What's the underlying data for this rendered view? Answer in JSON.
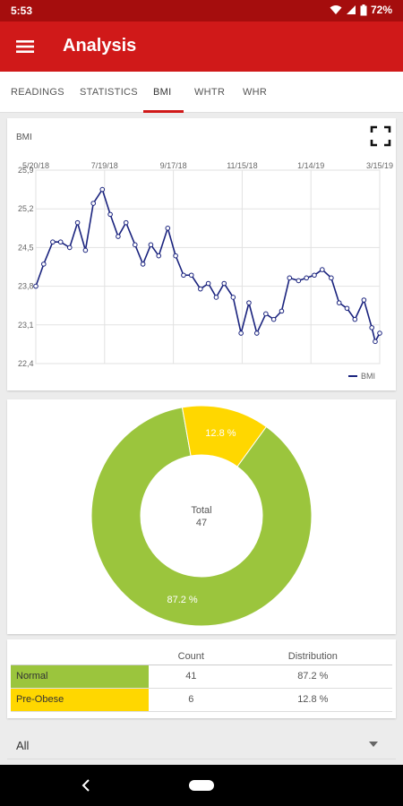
{
  "status_bar": {
    "time": "5:53",
    "battery": "72%"
  },
  "app_bar": {
    "title": "Analysis"
  },
  "tabs": [
    {
      "label": "READINGS",
      "active": false
    },
    {
      "label": "STATISTICS",
      "active": false
    },
    {
      "label": "BMI",
      "active": true
    },
    {
      "label": "WHTR",
      "active": false
    },
    {
      "label": "WHR",
      "active": false
    }
  ],
  "colors": {
    "primary": "#d01919",
    "status_bar": "#a50d0d",
    "line": "#1a237e",
    "normal": "#9bc53d",
    "pre_obese": "#ffd700"
  },
  "chart_data": [
    {
      "type": "line",
      "title": "BMI",
      "x_tick_labels": [
        "5/20/18",
        "7/19/18",
        "9/17/18",
        "11/15/18",
        "1/14/19",
        "3/15/19"
      ],
      "y_tick_labels": [
        "25,9",
        "25,2",
        "24,5",
        "23,8",
        "23,1",
        "22,4"
      ],
      "ylim": [
        22.4,
        25.9
      ],
      "grid": true,
      "legend": "bottom-right",
      "series": [
        {
          "name": "BMI",
          "x": [
            "5/20/18",
            "5/27/18",
            "6/4/18",
            "6/11/18",
            "6/19/18",
            "6/26/18",
            "7/3/18",
            "7/10/18",
            "7/18/18",
            "7/25/18",
            "8/1/18",
            "8/8/18",
            "8/16/18",
            "8/23/18",
            "8/30/18",
            "9/6/18",
            "9/14/18",
            "9/21/18",
            "9/28/18",
            "10/5/18",
            "10/13/18",
            "10/20/18",
            "10/27/18",
            "11/3/18",
            "11/11/18",
            "11/18/18",
            "11/25/18",
            "12/2/18",
            "12/10/18",
            "12/17/18",
            "12/24/18",
            "12/31/18",
            "1/8/19",
            "1/15/19",
            "1/22/19",
            "1/29/19",
            "2/6/19",
            "2/13/19",
            "2/20/19",
            "2/27/19",
            "3/7/19",
            "3/14/19",
            "3/17/19",
            "3/21/19"
          ],
          "values": [
            23.8,
            24.2,
            24.6,
            24.6,
            24.5,
            24.95,
            24.45,
            25.3,
            25.55,
            25.1,
            24.7,
            24.95,
            24.55,
            24.2,
            24.55,
            24.35,
            24.85,
            24.35,
            24.0,
            24.0,
            23.75,
            23.85,
            23.6,
            23.85,
            23.6,
            22.95,
            23.5,
            22.95,
            23.3,
            23.2,
            23.35,
            23.95,
            23.9,
            23.95,
            24.0,
            24.1,
            23.95,
            23.5,
            23.4,
            23.2,
            23.55,
            23.05,
            22.8,
            22.95
          ]
        }
      ]
    },
    {
      "type": "pie",
      "center_label": "Total",
      "center_value": "47",
      "slices": [
        {
          "name": "Normal",
          "value": 87.2,
          "label": "87.2 %"
        },
        {
          "name": "Pre-Obese",
          "value": 12.8,
          "label": "12.8 %"
        }
      ]
    }
  ],
  "table": {
    "headers": [
      "",
      "Count",
      "Distribution"
    ],
    "rows": [
      {
        "label": "Normal",
        "count": "41",
        "distribution": "87.2 %"
      },
      {
        "label": "Pre-Obese",
        "count": "6",
        "distribution": "12.8 %"
      }
    ]
  },
  "filter": {
    "selected": "All"
  },
  "icons": {
    "menu": "menu-icon",
    "fullscreen": "fullscreen-icon",
    "dropdown": "dropdown-arrow-icon",
    "back": "back-icon",
    "home": "home-pill-icon"
  }
}
